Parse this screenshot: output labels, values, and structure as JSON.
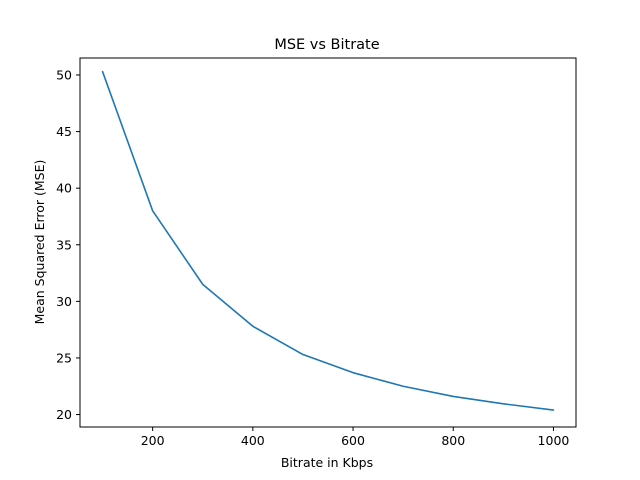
{
  "chart_data": {
    "type": "line",
    "title": "MSE vs Bitrate",
    "xlabel": "Bitrate in Kbps",
    "ylabel": "Mean Squared Error (MSE)",
    "xlim": [
      55,
      1045
    ],
    "ylim": [
      18.9,
      51.5
    ],
    "xticks": [
      200,
      400,
      600,
      800,
      1000
    ],
    "yticks": [
      20,
      25,
      30,
      35,
      40,
      45,
      50
    ],
    "grid": false,
    "series": [
      {
        "color": "#1f77b4",
        "x": [
          100,
          200,
          300,
          400,
          500,
          600,
          700,
          800,
          900,
          1000
        ],
        "y": [
          50.3,
          38.0,
          31.5,
          27.8,
          25.3,
          23.7,
          22.5,
          21.6,
          20.95,
          20.4
        ]
      }
    ]
  }
}
